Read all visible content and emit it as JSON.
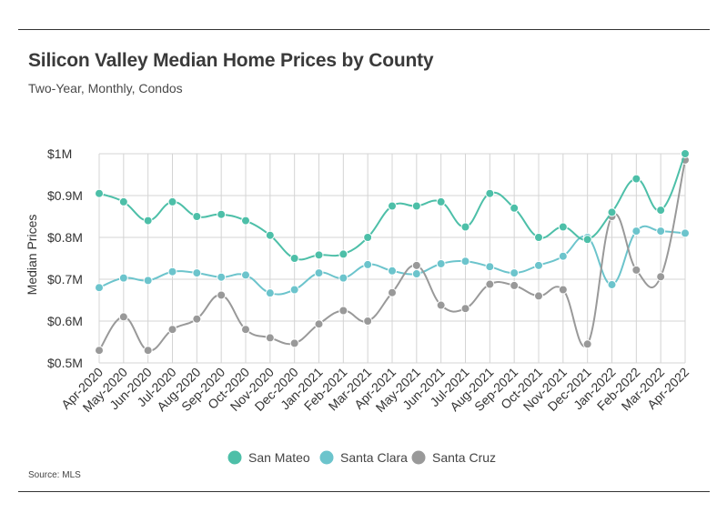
{
  "header": {
    "title": "Silicon Valley Median Home Prices by County",
    "subtitle": "Two-Year, Monthly, Condos"
  },
  "footer": {
    "source": "Source:  MLS"
  },
  "chart_data": {
    "type": "line",
    "title": "Silicon Valley Median Home Prices by County",
    "subtitle": "Two-Year, Monthly, Condos",
    "xlabel": "",
    "ylabel": "Median Prices",
    "ylim": [
      0.5,
      1.0
    ],
    "yticks": [
      {
        "value": 1.0,
        "label": "$1M"
      },
      {
        "value": 0.9,
        "label": "$0.9M"
      },
      {
        "value": 0.8,
        "label": "$0.8M"
      },
      {
        "value": 0.7,
        "label": "$0.7M"
      },
      {
        "value": 0.6,
        "label": "$0.6M"
      },
      {
        "value": 0.5,
        "label": "$0.5M"
      }
    ],
    "grid": "vertical and horizontal",
    "legend_position": "bottom",
    "categories": [
      "Apr-2020",
      "May-2020",
      "Jun-2020",
      "Jul-2020",
      "Aug-2020",
      "Sep-2020",
      "Oct-2020",
      "Nov-2020",
      "Dec-2020",
      "Jan-2021",
      "Feb-2021",
      "Mar-2021",
      "Apr-2021",
      "May-2021",
      "Jun-2021",
      "Jul-2021",
      "Aug-2021",
      "Sep-2021",
      "Oct-2021",
      "Nov-2021",
      "Dec-2021",
      "Jan-2022",
      "Feb-2022",
      "Mar-2022",
      "Apr-2022"
    ],
    "series": [
      {
        "name": "San Mateo",
        "color": "#4dbfa8",
        "values": [
          0.905,
          0.885,
          0.84,
          0.885,
          0.85,
          0.855,
          0.84,
          0.805,
          0.75,
          0.758,
          0.76,
          0.8,
          0.875,
          0.875,
          0.885,
          0.825,
          0.905,
          0.87,
          0.8,
          0.825,
          0.795,
          0.86,
          0.94,
          0.865,
          1.0
        ]
      },
      {
        "name": "Santa Clara",
        "color": "#6cc4cc",
        "values": [
          0.68,
          0.703,
          0.697,
          0.718,
          0.715,
          0.705,
          0.71,
          0.667,
          0.675,
          0.715,
          0.703,
          0.735,
          0.72,
          0.713,
          0.737,
          0.743,
          0.73,
          0.715,
          0.733,
          0.755,
          0.8,
          0.687,
          0.815,
          0.815,
          0.81
        ]
      },
      {
        "name": "Santa Cruz",
        "color": "#999999",
        "values": [
          0.53,
          0.61,
          0.53,
          0.58,
          0.605,
          0.662,
          0.58,
          0.56,
          0.547,
          0.593,
          0.625,
          0.6,
          0.668,
          0.733,
          0.638,
          0.63,
          0.688,
          0.685,
          0.66,
          0.675,
          0.545,
          0.85,
          0.722,
          0.706,
          0.985
        ]
      }
    ]
  }
}
